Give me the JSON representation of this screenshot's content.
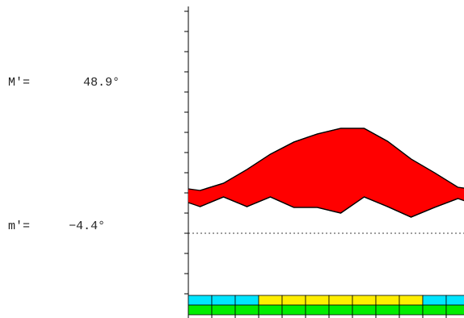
{
  "chart_data": {
    "type": "band",
    "annotations": [
      {
        "label": "M′=",
        "value": "48.9°"
      },
      {
        "label": "m′=",
        "value": "−4.4°"
      }
    ],
    "series": [
      {
        "color": "#ff0000",
        "values": [
          10.6,
          12.4,
          15.8,
          19.6,
          22.6,
          24.6,
          26,
          26,
          22.8,
          18.4,
          15,
          11.4
        ]
      },
      {
        "color": "#ff0000",
        "values": [
          6.6,
          9,
          6.6,
          9,
          6.4,
          6.4,
          5,
          9,
          6.6,
          4,
          6.4,
          8.6
        ]
      }
    ],
    "ylim": [
      -15,
      55
    ],
    "yticks": [
      -15,
      -10,
      -5,
      0,
      5,
      10,
      15,
      20,
      25,
      30,
      35,
      40,
      45,
      50,
      55
    ],
    "zero_line": 0,
    "month_colors": [
      "#00e5ff",
      "#00e5ff",
      "#00e5ff",
      "#ffee00",
      "#ffee00",
      "#ffee00",
      "#ffee00",
      "#ffee00",
      "#ffee00",
      "#ffee00",
      "#00e5ff",
      "#00e5ff"
    ],
    "base_color": "#00ee00"
  }
}
